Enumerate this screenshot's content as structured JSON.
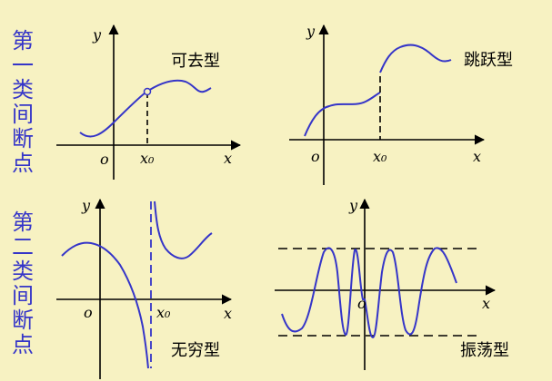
{
  "side_labels": {
    "first_kind": [
      "第",
      "一",
      "类",
      "间",
      "断",
      "点"
    ],
    "second_kind": [
      "第",
      "二",
      "类",
      "间",
      "断",
      "点"
    ]
  },
  "panels": {
    "removable": {
      "type_label": "可去型",
      "y": "y",
      "x": "x",
      "origin": "o",
      "point": "x₀"
    },
    "jump": {
      "type_label": "跳跃型",
      "y": "y",
      "x": "x",
      "origin": "o",
      "point": "x₀"
    },
    "infinite": {
      "type_label": "无穷型",
      "y": "y",
      "x": "x",
      "origin": "o",
      "point": "x₀"
    },
    "oscillating": {
      "type_label": "振荡型",
      "y": "y",
      "x": "x",
      "origin": "o"
    }
  },
  "colors": {
    "background": "#f7f2c2",
    "curve": "#3535c8",
    "label_accent": "#3535c8",
    "axes": "#000000"
  }
}
